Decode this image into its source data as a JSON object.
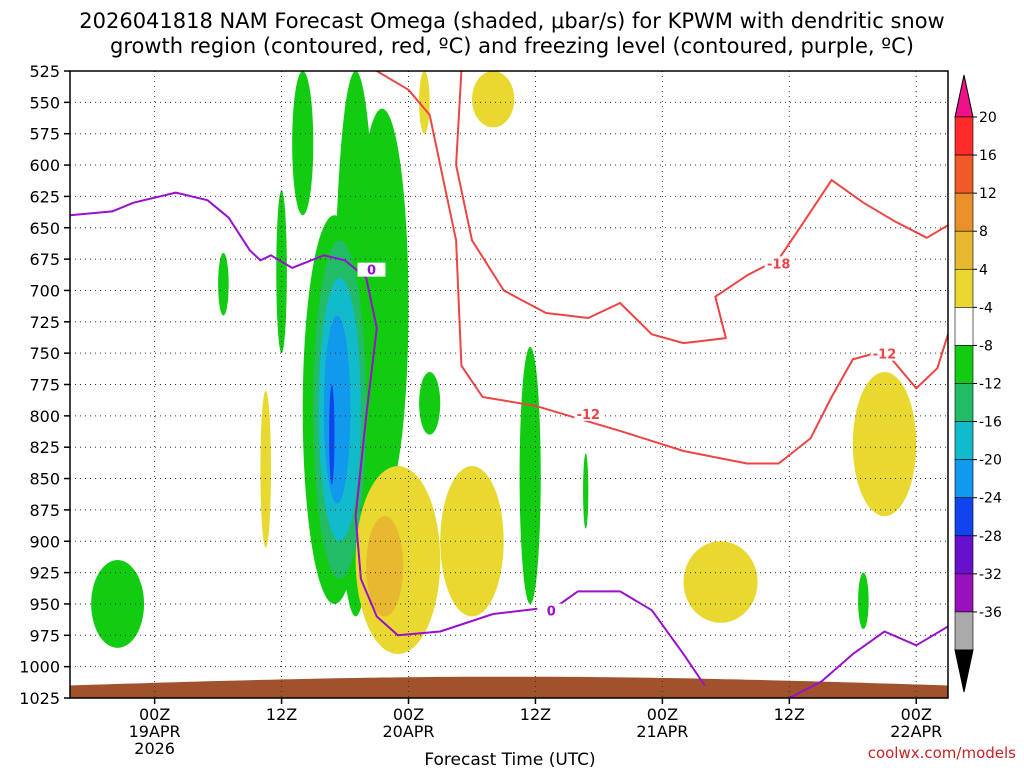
{
  "chart_data": {
    "type": "heatmap",
    "title_lines": [
      "2026041818 NAM Forecast Omega (shaded, μbar/s) for KPWM with dendritic snow",
      "growth region (contoured, red, ºC) and freezing level (contoured, purple, ºC)"
    ],
    "xlabel": "Forecast Time (UTC)",
    "credit": "coolwx.com/models",
    "y_axis": {
      "label": "",
      "scale": "pressure (hPa), inverted",
      "range": [
        1025,
        525
      ],
      "ticks": [
        525,
        550,
        575,
        600,
        625,
        650,
        675,
        700,
        725,
        750,
        775,
        800,
        825,
        850,
        875,
        900,
        925,
        950,
        975,
        1000,
        1025
      ]
    },
    "x_axis": {
      "range_hours": [
        -8,
        75
      ],
      "ticks": [
        {
          "hour": 0,
          "lines": [
            "00Z",
            "19APR",
            "2026"
          ]
        },
        {
          "hour": 12,
          "lines": [
            "12Z"
          ]
        },
        {
          "hour": 24,
          "lines": [
            "00Z",
            "20APR"
          ]
        },
        {
          "hour": 36,
          "lines": [
            "12Z"
          ]
        },
        {
          "hour": 48,
          "lines": [
            "00Z",
            "21APR"
          ]
        },
        {
          "hour": 60,
          "lines": [
            "12Z"
          ]
        },
        {
          "hour": 72,
          "lines": [
            "00Z",
            "22APR"
          ]
        }
      ]
    },
    "grid": true,
    "colorbar": {
      "labels": [
        "20",
        "16",
        "12",
        "8",
        "4",
        "-4",
        "-8",
        "-12",
        "-16",
        "-20",
        "-24",
        "-28",
        "-32",
        "-36"
      ],
      "colors": [
        "#ff2a2a",
        "#f05a28",
        "#e8902a",
        "#e8b830",
        "#e8d830",
        "#ffffff",
        "#11cc11",
        "#22bb66",
        "#11bbcc",
        "#1199ee",
        "#1144ee",
        "#6611cc",
        "#9911bb",
        "#aaaaaa"
      ],
      "top_arrow_color": "#ee1188",
      "bottom_arrow_color": "#000000"
    },
    "contours": {
      "dgz_color": "#ee4444",
      "freezing_color": "#9911cc",
      "labels": [
        "-18",
        "-12",
        "-12",
        "0",
        "0"
      ],
      "freezing_level": [
        {
          "hour": -8,
          "p": 640
        },
        {
          "hour": -4,
          "p": 637
        },
        {
          "hour": -2,
          "p": 630
        },
        {
          "hour": 2,
          "p": 622
        },
        {
          "hour": 5,
          "p": 628
        },
        {
          "hour": 7,
          "p": 642
        },
        {
          "hour": 9,
          "p": 668
        },
        {
          "hour": 10,
          "p": 676
        },
        {
          "hour": 11,
          "p": 672
        },
        {
          "hour": 13,
          "p": 682
        },
        {
          "hour": 16,
          "p": 672
        },
        {
          "hour": 18,
          "p": 676
        },
        {
          "hour": 20,
          "p": 690
        },
        {
          "hour": 21,
          "p": 730
        },
        {
          "hour": 20,
          "p": 800
        },
        {
          "hour": 19,
          "p": 880
        },
        {
          "hour": 19.5,
          "p": 930
        },
        {
          "hour": 21,
          "p": 960
        },
        {
          "hour": 23,
          "p": 975
        },
        {
          "hour": 27,
          "p": 972
        },
        {
          "hour": 32,
          "p": 958
        },
        {
          "hour": 36,
          "p": 954
        },
        {
          "hour": 38,
          "p": 952
        },
        {
          "hour": 40,
          "p": 940
        },
        {
          "hour": 44,
          "p": 940
        },
        {
          "hour": 47,
          "p": 955
        },
        {
          "hour": 50,
          "p": 990
        },
        {
          "hour": 52,
          "p": 1015
        }
      ],
      "freezing_level_2": [
        {
          "hour": 60,
          "p": 1025
        },
        {
          "hour": 63,
          "p": 1012
        },
        {
          "hour": 66,
          "p": 990
        },
        {
          "hour": 69,
          "p": 972
        },
        {
          "hour": 72,
          "p": 983
        },
        {
          "hour": 75,
          "p": 968
        }
      ],
      "dgz_minus12": [
        {
          "hour": 21,
          "p": 525
        },
        {
          "hour": 24,
          "p": 540
        },
        {
          "hour": 26,
          "p": 560
        },
        {
          "hour": 27,
          "p": 600
        },
        {
          "hour": 28.5,
          "p": 660
        },
        {
          "hour": 29,
          "p": 760
        },
        {
          "hour": 31,
          "p": 785
        },
        {
          "hour": 36,
          "p": 792
        },
        {
          "hour": 40,
          "p": 802
        },
        {
          "hour": 44,
          "p": 812
        },
        {
          "hour": 50,
          "p": 828
        },
        {
          "hour": 56,
          "p": 838
        },
        {
          "hour": 59,
          "p": 838
        },
        {
          "hour": 62,
          "p": 818
        },
        {
          "hour": 64,
          "p": 785
        },
        {
          "hour": 66,
          "p": 755
        },
        {
          "hour": 69,
          "p": 748
        },
        {
          "hour": 72,
          "p": 778
        },
        {
          "hour": 74,
          "p": 762
        },
        {
          "hour": 75,
          "p": 735
        }
      ],
      "dgz_minus18": [
        {
          "hour": 29,
          "p": 525
        },
        {
          "hour": 28.5,
          "p": 600
        },
        {
          "hour": 30,
          "p": 660
        },
        {
          "hour": 33,
          "p": 700
        },
        {
          "hour": 37,
          "p": 718
        },
        {
          "hour": 41,
          "p": 722
        },
        {
          "hour": 44,
          "p": 710
        },
        {
          "hour": 47,
          "p": 735
        },
        {
          "hour": 50,
          "p": 742
        },
        {
          "hour": 54,
          "p": 738
        },
        {
          "hour": 53,
          "p": 705
        },
        {
          "hour": 56,
          "p": 688
        },
        {
          "hour": 59,
          "p": 675
        },
        {
          "hour": 61,
          "p": 650
        },
        {
          "hour": 64,
          "p": 612
        },
        {
          "hour": 67,
          "p": 630
        },
        {
          "hour": 70,
          "p": 645
        },
        {
          "hour": 73,
          "p": 658
        },
        {
          "hour": 75,
          "p": 648
        }
      ]
    },
    "omega_regions": [
      {
        "value": -8,
        "color": "#11cc11",
        "hour_range": [
          13,
          15
        ],
        "p_range": [
          525,
          640
        ]
      },
      {
        "value": -8,
        "color": "#11cc11",
        "hour_range": [
          17,
          21
        ],
        "p_range": [
          525,
          960
        ]
      },
      {
        "value": -8,
        "color": "#11cc11",
        "hour_range": [
          14,
          20
        ],
        "p_range": [
          640,
          950
        ]
      },
      {
        "value": -8,
        "color": "#11cc11",
        "hour_range": [
          19,
          24
        ],
        "p_range": [
          555,
          870
        ]
      },
      {
        "value": -12,
        "color": "#22bb66",
        "hour_range": [
          15,
          20
        ],
        "p_range": [
          660,
          930
        ]
      },
      {
        "value": -16,
        "color": "#11bbcc",
        "hour_range": [
          15.5,
          19.5
        ],
        "p_range": [
          690,
          900
        ]
      },
      {
        "value": -20,
        "color": "#1199ee",
        "hour_range": [
          16,
          18.5
        ],
        "p_range": [
          720,
          870
        ]
      },
      {
        "value": -24,
        "color": "#1144ee",
        "hour_range": [
          16.5,
          17
        ],
        "p_range": [
          775,
          855
        ]
      },
      {
        "value": -8,
        "color": "#11cc11",
        "hour_range": [
          -6,
          -1
        ],
        "p_range": [
          915,
          985
        ]
      },
      {
        "value": -8,
        "color": "#11cc11",
        "hour_range": [
          34.5,
          36.5
        ],
        "p_range": [
          745,
          950
        ]
      },
      {
        "value": -8,
        "color": "#11cc11",
        "hour_range": [
          25,
          27
        ],
        "p_range": [
          765,
          815
        ]
      },
      {
        "value": -8,
        "color": "#11cc11",
        "hour_range": [
          6,
          7
        ],
        "p_range": [
          670,
          720
        ]
      },
      {
        "value": -8,
        "color": "#11cc11",
        "hour_range": [
          11.5,
          12.5
        ],
        "p_range": [
          620,
          750
        ]
      },
      {
        "value": -8,
        "color": "#11cc11",
        "hour_range": [
          40.5,
          41
        ],
        "p_range": [
          830,
          890
        ]
      },
      {
        "value": -8,
        "color": "#11cc11",
        "hour_range": [
          66.5,
          67.5
        ],
        "p_range": [
          925,
          970
        ]
      },
      {
        "value": 4,
        "color": "#e8d830",
        "hour_range": [
          19,
          27
        ],
        "p_range": [
          840,
          990
        ]
      },
      {
        "value": 4,
        "color": "#e8d830",
        "hour_range": [
          27,
          33
        ],
        "p_range": [
          840,
          960
        ]
      },
      {
        "value": 4,
        "color": "#e8d830",
        "hour_range": [
          30,
          34
        ],
        "p_range": [
          525,
          570
        ]
      },
      {
        "value": 4,
        "color": "#e8d830",
        "hour_range": [
          25,
          26
        ],
        "p_range": [
          525,
          575
        ]
      },
      {
        "value": 4,
        "color": "#e8d830",
        "hour_range": [
          10,
          11
        ],
        "p_range": [
          780,
          905
        ]
      },
      {
        "value": 4,
        "color": "#e8d830",
        "hour_range": [
          50,
          57
        ],
        "p_range": [
          900,
          965
        ]
      },
      {
        "value": 4,
        "color": "#e8d830",
        "hour_range": [
          66,
          72
        ],
        "p_range": [
          765,
          880
        ]
      },
      {
        "value": 8,
        "color": "#e8b830",
        "hour_range": [
          20,
          23.5
        ],
        "p_range": [
          880,
          960
        ]
      }
    ],
    "terrain": {
      "color": "#a0522d",
      "p_top_range": [
        1008,
        1015
      ]
    }
  }
}
